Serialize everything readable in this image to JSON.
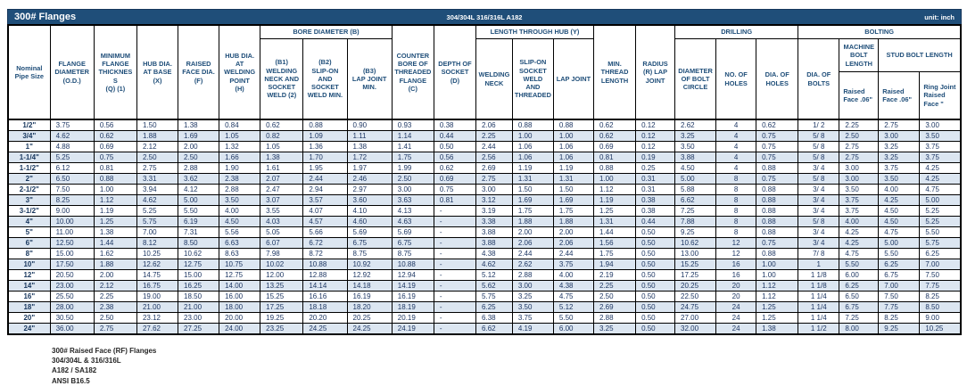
{
  "titlebar": {
    "title": "300# Flanges",
    "material": "304/304L 316/316L A182",
    "unit": "unit: inch"
  },
  "colors": {
    "bar_bg": "#1F4E79",
    "header_text": "#1F4E79",
    "row_alt_bg": "#DCE6F1",
    "data_text": "#1F3864",
    "border": "#000000"
  },
  "header": {
    "pipe": "Nominal\nPipe Size",
    "flange_od": "FLANGE\nDIAMETER\n(O.D.)",
    "min_thickness": "MINIMUM\nFLANGE\nTHICKNES\nS\n(Q) (1)",
    "hub_base": "HUB DIA.\nAT BASE\n(X)",
    "raised_face": "RAISED\nFACE DIA.\n(F)",
    "hub_weld": "HUB DIA.\nAT\nWELDING\nPOINT\n(H)",
    "bore_group": "BORE DIAMETER (B)",
    "b1": "(B1)\nWELDING\nNECK AND\nSOCKET\nWELD (2)",
    "b2": "(B2)\nSLIP-ON AND\nSOCKET\nWELD MIN.",
    "b3": "(B3)\nLAP JOINT\nMIN.",
    "counter_bore": "COUNTER\nBORE OF\nTHREADED\nFLANGE\n(C)",
    "socket_depth": "DEPTH OF\nSOCKET\n(D)",
    "hub_group": "LENGTH THROUGH HUB (Y)",
    "welding_neck": "WELDING\nNECK",
    "slip_on": "SLIP-ON\nSOCKET\nWELD\nAND\nTHREADED",
    "lap_joint": "LAP JOINT",
    "min_thread": "MIN.\nTHREAD\nLENGTH",
    "radius": "RADIUS\n(R) LAP\nJOINT",
    "drilling_group": "DRILLING",
    "bolt_circle": "DIAMETER\nOF BOLT\nCIRCLE",
    "num_holes": "NO. OF\nHOLES",
    "dia_holes": "DIA. OF\nHOLES",
    "bolting_group": "BOLTING",
    "dia_bolts": "DIA. OF\nBOLTS",
    "machine_group": "MACHINE\nBOLT\nLENGTH",
    "stud_group": "STUD BOLT LENGTH",
    "machine_rf": "Raised\nFace .06\"",
    "stud_rf": "Raised\nFace .06\"",
    "stud_ring": "Ring Joint\nRaised\nFace \""
  },
  "rows": [
    [
      "1/2\"",
      "3.75",
      "0.56",
      "1.50",
      "1.38",
      "0.84",
      "0.62",
      "0.88",
      "0.90",
      "0.93",
      "0.38",
      "2.06",
      "0.88",
      "0.88",
      "0.62",
      "0.12",
      "2.62",
      "4",
      "0.62",
      "1/ 2",
      "2.25",
      "2.75",
      "3.00"
    ],
    [
      "3/4\"",
      "4.62",
      "0.62",
      "1.88",
      "1.69",
      "1.05",
      "0.82",
      "1.09",
      "1.11",
      "1.14",
      "0.44",
      "2.25",
      "1.00",
      "1.00",
      "0.62",
      "0.12",
      "3.25",
      "4",
      "0.75",
      "5/ 8",
      "2.50",
      "3.00",
      "3.50"
    ],
    [
      "1\"",
      "4.88",
      "0.69",
      "2.12",
      "2.00",
      "1.32",
      "1.05",
      "1.36",
      "1.38",
      "1.41",
      "0.50",
      "2.44",
      "1.06",
      "1.06",
      "0.69",
      "0.12",
      "3.50",
      "4",
      "0.75",
      "5/ 8",
      "2.75",
      "3.25",
      "3.75"
    ],
    [
      "1-1/4\"",
      "5.25",
      "0.75",
      "2.50",
      "2.50",
      "1.66",
      "1.38",
      "1.70",
      "1.72",
      "1.75",
      "0.56",
      "2.56",
      "1.06",
      "1.06",
      "0.81",
      "0.19",
      "3.88",
      "4",
      "0.75",
      "5/ 8",
      "2.75",
      "3.25",
      "3.75"
    ],
    [
      "1-1/2\"",
      "6.12",
      "0.81",
      "2.75",
      "2.88",
      "1.90",
      "1.61",
      "1.95",
      "1.97",
      "1.99",
      "0.62",
      "2.69",
      "1.19",
      "1.19",
      "0.88",
      "0.25",
      "4.50",
      "4",
      "0.88",
      "3/ 4",
      "3.00",
      "3.75",
      "4.25"
    ],
    [
      "2\"",
      "6.50",
      "0.88",
      "3.31",
      "3.62",
      "2.38",
      "2.07",
      "2.44",
      "2.46",
      "2.50",
      "0.69",
      "2.75",
      "1.31",
      "1.31",
      "1.00",
      "0.31",
      "5.00",
      "8",
      "0.75",
      "5/ 8",
      "3.00",
      "3.50",
      "4.25"
    ],
    [
      "2-1/2\"",
      "7.50",
      "1.00",
      "3.94",
      "4.12",
      "2.88",
      "2.47",
      "2.94",
      "2.97",
      "3.00",
      "0.75",
      "3.00",
      "1.50",
      "1.50",
      "1.12",
      "0.31",
      "5.88",
      "8",
      "0.88",
      "3/ 4",
      "3.50",
      "4.00",
      "4.75"
    ],
    [
      "3\"",
      "8.25",
      "1.12",
      "4.62",
      "5.00",
      "3.50",
      "3.07",
      "3.57",
      "3.60",
      "3.63",
      "0.81",
      "3.12",
      "1.69",
      "1.69",
      "1.19",
      "0.38",
      "6.62",
      "8",
      "0.88",
      "3/ 4",
      "3.75",
      "4.25",
      "5.00"
    ],
    [
      "3-1/2\"",
      "9.00",
      "1.19",
      "5.25",
      "5.50",
      "4.00",
      "3.55",
      "4.07",
      "4.10",
      "4.13",
      "-",
      "3.19",
      "1.75",
      "1.75",
      "1.25",
      "0.38",
      "7.25",
      "8",
      "0.88",
      "3/ 4",
      "3.75",
      "4.50",
      "5.25"
    ],
    [
      "4\"",
      "10.00",
      "1.25",
      "5.75",
      "6.19",
      "4.50",
      "4.03",
      "4.57",
      "4.60",
      "4.63",
      "-",
      "3.38",
      "1.88",
      "1.88",
      "1.31",
      "0.44",
      "7.88",
      "8",
      "0.88",
      "5/ 8",
      "4.00",
      "4.50",
      "5.25"
    ],
    [
      "5\"",
      "11.00",
      "1.38",
      "7.00",
      "7.31",
      "5.56",
      "5.05",
      "5.66",
      "5.69",
      "5.69",
      "-",
      "3.88",
      "2.00",
      "2.00",
      "1.44",
      "0.50",
      "9.25",
      "8",
      "0.88",
      "3/ 4",
      "4.25",
      "4.75",
      "5.50"
    ],
    [
      "6\"",
      "12.50",
      "1.44",
      "8.12",
      "8.50",
      "6.63",
      "6.07",
      "6.72",
      "6.75",
      "6.75",
      "-",
      "3.88",
      "2.06",
      "2.06",
      "1.56",
      "0.50",
      "10.62",
      "12",
      "0.75",
      "3/ 4",
      "4.25",
      "5.00",
      "5.75"
    ],
    [
      "8\"",
      "15.00",
      "1.62",
      "10.25",
      "10.62",
      "8.63",
      "7.98",
      "8.72",
      "8.75",
      "8.75",
      "-",
      "4.38",
      "2.44",
      "2.44",
      "1.75",
      "0.50",
      "13.00",
      "12",
      "0.88",
      "7/ 8",
      "4.75",
      "5.50",
      "6.25"
    ],
    [
      "10\"",
      "17.50",
      "1.88",
      "12.62",
      "12.75",
      "10.75",
      "10.02",
      "10.88",
      "10.92",
      "10.88",
      "-",
      "4.62",
      "2.62",
      "3.75",
      "1.94",
      "0.50",
      "15.25",
      "16",
      "1.00",
      "1",
      "5.50",
      "6.25",
      "7.00"
    ],
    [
      "12\"",
      "20.50",
      "2.00",
      "14.75",
      "15.00",
      "12.75",
      "12.00",
      "12.88",
      "12.92",
      "12.94",
      "-",
      "5.12",
      "2.88",
      "4.00",
      "2.19",
      "0.50",
      "17.25",
      "16",
      "1.00",
      "1 1/8",
      "6.00",
      "6.75",
      "7.50"
    ],
    [
      "14\"",
      "23.00",
      "2.12",
      "16.75",
      "16.25",
      "14.00",
      "13.25",
      "14.14",
      "14.18",
      "14.19",
      "-",
      "5.62",
      "3.00",
      "4.38",
      "2.25",
      "0.50",
      "20.25",
      "20",
      "1.12",
      "1 1/8",
      "6.25",
      "7.00",
      "7.75"
    ],
    [
      "16\"",
      "25.50",
      "2.25",
      "19.00",
      "18.50",
      "16.00",
      "15.25",
      "16.16",
      "16.19",
      "16.19",
      "-",
      "5.75",
      "3.25",
      "4.75",
      "2.50",
      "0.50",
      "22.50",
      "20",
      "1.12",
      "1 1/4",
      "6.50",
      "7.50",
      "8.25"
    ],
    [
      "18\"",
      "28.00",
      "2.38",
      "21.00",
      "21.00",
      "18.00",
      "17.25",
      "18.18",
      "18.20",
      "18.19",
      "-",
      "6.25",
      "3.50",
      "5.12",
      "2.69",
      "0.50",
      "24.75",
      "24",
      "1.25",
      "1 1/4",
      "6.75",
      "7.75",
      "8.50"
    ],
    [
      "20\"",
      "30.50",
      "2.50",
      "23.12",
      "23.00",
      "20.00",
      "19.25",
      "20.20",
      "20.25",
      "20.19",
      "-",
      "6.38",
      "3.75",
      "5.50",
      "2.88",
      "0.50",
      "27.00",
      "24",
      "1.25",
      "1 1/4",
      "7.25",
      "8.25",
      "9.00"
    ],
    [
      "24\"",
      "36.00",
      "2.75",
      "27.62",
      "27.25",
      "24.00",
      "23.25",
      "24.25",
      "24.25",
      "24.19",
      "-",
      "6.62",
      "4.19",
      "6.00",
      "3.25",
      "0.50",
      "32.00",
      "24",
      "1.38",
      "1 1/2",
      "8.00",
      "9.25",
      "10.25"
    ]
  ],
  "footer": {
    "notes": [
      "300# Raised Face (RF) Flanges",
      "304/304L & 316/316L",
      "A182 / SA182",
      "ANSI B16.5"
    ]
  }
}
